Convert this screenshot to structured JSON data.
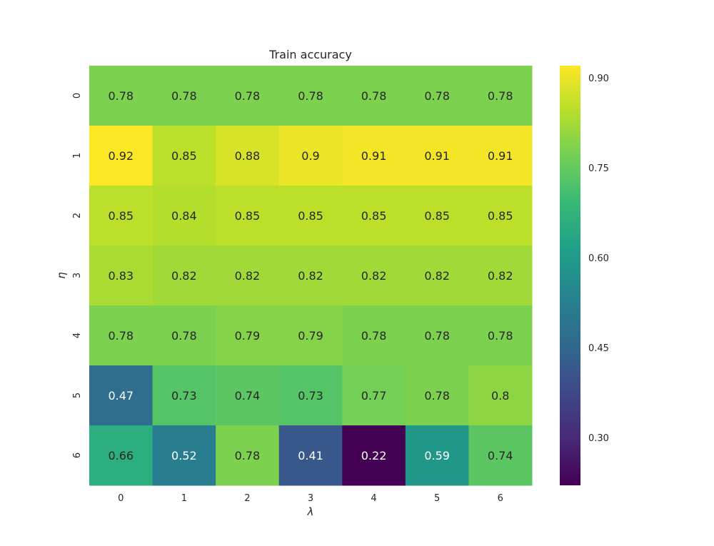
{
  "chart_data": {
    "type": "heatmap",
    "title": "Train accuracy",
    "xlabel": "λ",
    "ylabel": "η",
    "x_categories": [
      "0",
      "1",
      "2",
      "3",
      "4",
      "5",
      "6"
    ],
    "y_categories": [
      "0",
      "1",
      "2",
      "3",
      "4",
      "5",
      "6"
    ],
    "values": [
      [
        0.78,
        0.78,
        0.78,
        0.78,
        0.78,
        0.78,
        0.78
      ],
      [
        0.92,
        0.85,
        0.88,
        0.9,
        0.91,
        0.91,
        0.91
      ],
      [
        0.85,
        0.84,
        0.85,
        0.85,
        0.85,
        0.85,
        0.85
      ],
      [
        0.83,
        0.82,
        0.82,
        0.82,
        0.82,
        0.82,
        0.82
      ],
      [
        0.78,
        0.78,
        0.79,
        0.79,
        0.78,
        0.78,
        0.78
      ],
      [
        0.47,
        0.73,
        0.74,
        0.73,
        0.77,
        0.78,
        0.8
      ],
      [
        0.66,
        0.52,
        0.78,
        0.41,
        0.22,
        0.59,
        0.74
      ]
    ],
    "colormap": "viridis",
    "color_range": [
      0.22,
      0.92
    ],
    "colorbar_ticks": [
      "0.30",
      "0.45",
      "0.60",
      "0.75",
      "0.90"
    ],
    "grid": false,
    "colorbar_position": "right"
  }
}
